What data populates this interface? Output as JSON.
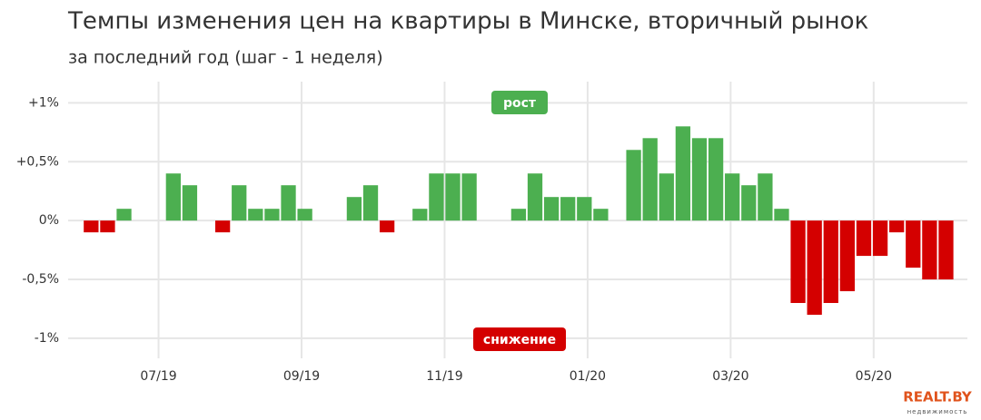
{
  "chart_data": {
    "type": "bar",
    "title": "Темпы изменения цен на квартиры в Минске, вторичный рынок",
    "subtitle": "за последний год (шаг - 1 неделя)",
    "x": [
      1,
      2,
      3,
      4,
      5,
      6,
      7,
      8,
      9,
      10,
      11,
      12,
      13,
      14,
      15,
      16,
      17,
      18,
      19,
      20,
      21,
      22,
      23,
      24,
      25,
      26,
      27,
      28,
      29,
      30,
      31,
      32,
      33,
      34,
      35,
      36,
      37,
      38,
      39,
      40,
      41,
      42,
      43,
      44,
      45,
      46,
      47,
      48,
      49,
      50,
      51,
      52,
      53
    ],
    "values": [
      -0.1,
      -0.1,
      0.1,
      0,
      0,
      0.4,
      0.3,
      0,
      -0.1,
      0.3,
      0.1,
      0.1,
      0.3,
      0.1,
      0,
      0,
      0.2,
      0.3,
      -0.1,
      0,
      0.1,
      0.4,
      0.4,
      0.4,
      0,
      0,
      0.1,
      0.4,
      0.2,
      0.2,
      0.2,
      0.1,
      0,
      0.6,
      0.7,
      0.4,
      0.8,
      0.7,
      0.7,
      0.4,
      0.3,
      0.4,
      0.1,
      -0.7,
      -0.8,
      -0.7,
      -0.6,
      -0.3,
      -0.3,
      -0.1,
      -0.4,
      -0.5,
      -0.5
    ],
    "positive_color": "#4caf50",
    "negative_color": "#d40000",
    "xlim": [
      -0.4,
      54.3
    ],
    "xticks": [
      {
        "value": 5.1,
        "label": "07/19"
      },
      {
        "value": 13.8,
        "label": "09/19"
      },
      {
        "value": 22.5,
        "label": "11/19"
      },
      {
        "value": 31.2,
        "label": "01/20"
      },
      {
        "value": 39.9,
        "label": "03/20"
      },
      {
        "value": 48.6,
        "label": "05/20"
      }
    ],
    "ylim": [
      -1.17,
      1.18
    ],
    "yticks": [
      {
        "value": 1,
        "label": "+1%"
      },
      {
        "value": 0.5,
        "label": "+0,5%"
      },
      {
        "value": 0,
        "label": "0%"
      },
      {
        "value": -0.5,
        "label": "-0,5%"
      },
      {
        "value": -1,
        "label": "-1%"
      }
    ],
    "grid": true,
    "annotations": [
      "рост",
      "снижение"
    ],
    "logo": {
      "name": "REALT.BY",
      "tagline": "недвижимость"
    }
  }
}
